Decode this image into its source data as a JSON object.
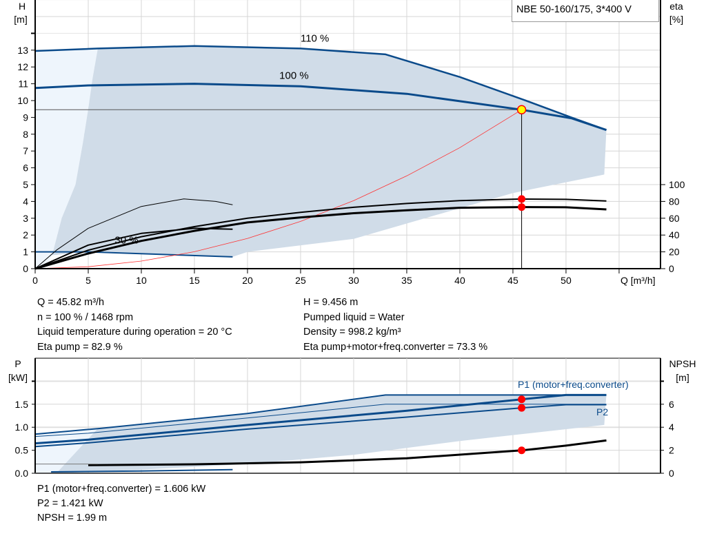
{
  "chart_data": [
    {
      "type": "line",
      "title": "NBE 50-160/175, 3*400 V",
      "xlabel": "Q [m³/h]",
      "ylabel": [
        "H",
        "[m]"
      ],
      "y2label": [
        "eta",
        "[%]"
      ],
      "xlim": [
        0,
        58.9
      ],
      "ylim": [
        0,
        16
      ],
      "y2lim": [
        0,
        131
      ],
      "xticks": [
        0,
        5,
        10,
        15,
        20,
        25,
        30,
        35,
        40,
        45,
        50
      ],
      "yticks": [
        0,
        1,
        2,
        3,
        4,
        5,
        6,
        7,
        8,
        9,
        10,
        11,
        12,
        13
      ],
      "y2ticks": [
        0,
        20,
        40,
        60,
        80,
        100
      ],
      "grid": true,
      "colors": {
        "curve": "#0a4a8a",
        "area": "#d0dce8",
        "area_light": "#eef5fc",
        "system": "#ff3030",
        "eta": "#000000",
        "point": "#ff0000",
        "duty": "#ffff00"
      },
      "annotations": [
        {
          "text": "110 %",
          "x": 25,
          "y": 13.5
        },
        {
          "text": "100 %",
          "x": 23,
          "y": 11.3
        },
        {
          "text": "30 %",
          "x": 7.5,
          "y": 1.5
        }
      ],
      "series": [
        {
          "kind": "H",
          "width": 2.5,
          "points": [
            [
              0,
              12.95
            ],
            [
              5.9,
              13.1
            ],
            [
              15,
              13.25
            ],
            [
              25,
              13.1
            ],
            [
              33,
              12.75
            ],
            [
              40,
              11.4
            ],
            [
              46,
              10.05
            ],
            [
              50.5,
              9.0
            ],
            [
              53.8,
              8.25
            ]
          ]
        },
        {
          "kind": "H",
          "width": 3,
          "points": [
            [
              0,
              10.75
            ],
            [
              5,
              10.9
            ],
            [
              15,
              11.0
            ],
            [
              25,
              10.85
            ],
            [
              35,
              10.4
            ],
            [
              45.82,
              9.456
            ],
            [
              50.5,
              8.95
            ],
            [
              53.8,
              8.25
            ]
          ]
        },
        {
          "kind": "H",
          "width": 2,
          "points": [
            [
              0,
              1.0
            ],
            [
              5,
              1.0
            ],
            [
              18.6,
              0.7
            ]
          ]
        },
        {
          "kind": "system",
          "points": [
            [
              0,
              0
            ],
            [
              5,
              0.113
            ],
            [
              10,
              0.45
            ],
            [
              15,
              1.01
            ],
            [
              20,
              1.8
            ],
            [
              25,
              2.81
            ],
            [
              30,
              4.05
            ],
            [
              35,
              5.52
            ],
            [
              40,
              7.2
            ],
            [
              45.82,
              9.456
            ]
          ]
        },
        {
          "kind": "eta",
          "width": 2,
          "points": [
            [
              0,
              0
            ],
            [
              5,
              22
            ],
            [
              10,
              38
            ],
            [
              15,
              50
            ],
            [
              20,
              60
            ],
            [
              25,
              67
            ],
            [
              30,
              73
            ],
            [
              35,
              77.5
            ],
            [
              40,
              81
            ],
            [
              45.82,
              82.9
            ],
            [
              50,
              82.5
            ],
            [
              53.8,
              80.5
            ]
          ]
        },
        {
          "kind": "eta",
          "width": 3,
          "points": [
            [
              0,
              0
            ],
            [
              5,
              18
            ],
            [
              10,
              33
            ],
            [
              15,
              45
            ],
            [
              20,
              55
            ],
            [
              25,
              61
            ],
            [
              30,
              66
            ],
            [
              35,
              69.5
            ],
            [
              40,
              72.5
            ],
            [
              45.82,
              73.3
            ],
            [
              50,
              73
            ],
            [
              53.8,
              70.5
            ]
          ]
        },
        {
          "kind": "eta",
          "width": 1,
          "points": [
            [
              0,
              0
            ],
            [
              2,
              22
            ],
            [
              5,
              48
            ],
            [
              10,
              74
            ],
            [
              14,
              83
            ],
            [
              17,
              80
            ],
            [
              18.6,
              76
            ]
          ]
        },
        {
          "kind": "eta",
          "width": 2,
          "points": [
            [
              0,
              0
            ],
            [
              5,
              28
            ],
            [
              10,
              42
            ],
            [
              15,
              48
            ],
            [
              18.6,
              47
            ]
          ]
        }
      ],
      "area": [
        [
          5.9,
          13.1
        ],
        [
          15,
          13.25
        ],
        [
          25,
          13.1
        ],
        [
          33,
          12.75
        ],
        [
          40,
          11.4
        ],
        [
          46,
          10.05
        ],
        [
          50.5,
          9.0
        ],
        [
          53.8,
          8.25
        ],
        [
          53.6,
          5.6
        ],
        [
          45,
          4.5
        ],
        [
          40,
          3.6
        ],
        [
          30,
          1.77
        ],
        [
          20,
          1.0
        ],
        [
          18.6,
          0.7
        ],
        [
          5,
          1.0
        ],
        [
          1.6,
          0.8
        ],
        [
          2.5,
          3
        ],
        [
          3.8,
          5
        ],
        [
          4.5,
          7.5
        ],
        [
          5,
          9.5
        ],
        [
          5.4,
          11.3
        ]
      ],
      "area_light": [
        [
          0,
          0
        ],
        [
          0,
          12.95
        ],
        [
          5.9,
          13.1
        ],
        [
          5.4,
          11.3
        ],
        [
          5,
          9.5
        ],
        [
          4.5,
          7.5
        ],
        [
          3.8,
          5
        ],
        [
          2.5,
          3
        ],
        [
          1.6,
          0.8
        ],
        [
          0.8,
          0
        ]
      ],
      "duty_point": {
        "Q": 45.82,
        "H": 9.456,
        "eta_pump": 82.9,
        "eta_total": 73.3
      }
    },
    {
      "type": "line",
      "ylabel": [
        "P",
        "[kW]"
      ],
      "y2label": [
        "NPSH",
        "[m]"
      ],
      "xlim": [
        0,
        58.9
      ],
      "ylim": [
        0,
        2.5
      ],
      "y2lim": [
        0,
        10
      ],
      "yticks": [
        "0.0",
        "0.5",
        "1.0",
        "1.5"
      ],
      "y2ticks": [
        0,
        2,
        4,
        6
      ],
      "grid": true,
      "labels": {
        "p1": "P1 (motor+freq.converter)",
        "p2": "P2"
      },
      "series": [
        {
          "kind": "P",
          "width": 2,
          "points": [
            [
              0,
              0.85
            ],
            [
              5.9,
              0.97
            ],
            [
              20,
              1.3
            ],
            [
              33,
              1.7
            ],
            [
              53.8,
              1.7
            ]
          ]
        },
        {
          "kind": "P",
          "width": 1,
          "points": [
            [
              0,
              0.8
            ],
            [
              5,
              0.87
            ],
            [
              20,
              1.2
            ],
            [
              33,
              1.5
            ],
            [
              53.8,
              1.5
            ]
          ]
        },
        {
          "kind": "P",
          "width": 3,
          "points": [
            [
              0,
              0.65
            ],
            [
              5,
              0.73
            ],
            [
              20,
              1.05
            ],
            [
              35,
              1.36
            ],
            [
              45.82,
              1.606
            ],
            [
              50,
              1.7
            ],
            [
              53.8,
              1.7
            ]
          ]
        },
        {
          "kind": "P",
          "width": 2,
          "points": [
            [
              0,
              0.58
            ],
            [
              5,
              0.66
            ],
            [
              20,
              0.96
            ],
            [
              35,
              1.22
            ],
            [
              45.82,
              1.421
            ],
            [
              50,
              1.49
            ],
            [
              53.8,
              1.49
            ]
          ]
        },
        {
          "kind": "P",
          "width": 2,
          "points": [
            [
              1.5,
              0.03
            ],
            [
              10,
              0.05
            ],
            [
              18.6,
              0.08
            ]
          ]
        },
        {
          "kind": "NPSH",
          "width": 3,
          "points": [
            [
              5,
              0.7
            ],
            [
              15,
              0.78
            ],
            [
              25,
              0.95
            ],
            [
              35,
              1.3
            ],
            [
              45.82,
              1.99
            ],
            [
              50,
              2.4
            ],
            [
              53.8,
              2.85
            ]
          ]
        }
      ],
      "area": [
        [
          5.9,
          0.97
        ],
        [
          20,
          1.3
        ],
        [
          33,
          1.7
        ],
        [
          53.8,
          1.7
        ],
        [
          53.6,
          1.05
        ],
        [
          45.8,
          0.85
        ],
        [
          40,
          0.7
        ],
        [
          30,
          0.4
        ],
        [
          20,
          0.2
        ],
        [
          10,
          0.08
        ],
        [
          5,
          0.03
        ],
        [
          2,
          0
        ]
      ],
      "duty_points": {
        "P1": 1.606,
        "P2": 1.421,
        "NPSH": 1.99
      }
    }
  ],
  "info": {
    "left": [
      "Q = 45.82 m³/h",
      "n = 100 % / 1468 rpm",
      "Liquid temperature during operation = 20 °C",
      "Eta pump = 82.9 %"
    ],
    "right": [
      "H = 9.456 m",
      "Pumped liquid = Water",
      "Density = 998.2 kg/m³",
      "Eta pump+motor+freq.converter = 73.3 %"
    ],
    "bottom": [
      "P1 (motor+freq.converter) = 1.606 kW",
      "P2 = 1.421 kW",
      "NPSH = 1.99 m"
    ]
  }
}
